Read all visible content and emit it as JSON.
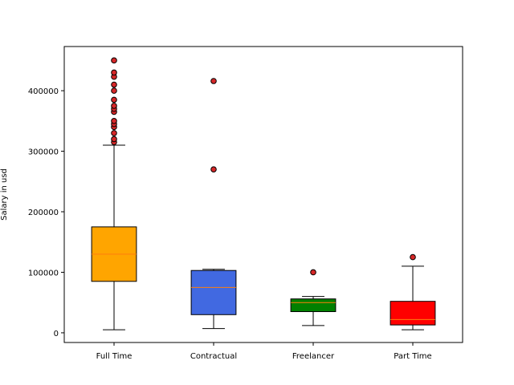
{
  "chart_data": {
    "type": "box",
    "title": "",
    "xlabel": "",
    "ylabel": "Salary in usd",
    "ylim": [
      -16000,
      473000
    ],
    "yticks": [
      0,
      100000,
      200000,
      300000,
      400000
    ],
    "ytick_labels": [
      "0",
      "100000",
      "200000",
      "300000",
      "400000"
    ],
    "grid": false,
    "categories": [
      "Full Time",
      "Contractual",
      "Freelancer",
      "Part Time"
    ],
    "colors": [
      "#ffa500",
      "#4169e1",
      "#008000",
      "#ff0000"
    ],
    "median_color": "#ff7f0e",
    "flier_color": "#d62728",
    "boxes": [
      {
        "whisker_low": 5000,
        "q1": 85000,
        "median": 130000,
        "q3": 175000,
        "whisker_high": 310000,
        "fliers": [
          315000,
          320000,
          330000,
          340000,
          345000,
          350000,
          365000,
          370000,
          375000,
          385000,
          400000,
          410000,
          423000,
          430000,
          450000
        ]
      },
      {
        "whisker_low": 7000,
        "q1": 30000,
        "median": 75000,
        "q3": 103000,
        "whisker_high": 105000,
        "fliers": [
          270000,
          416000
        ]
      },
      {
        "whisker_low": 12000,
        "q1": 35000,
        "median": 50000,
        "q3": 56000,
        "whisker_high": 60000,
        "fliers": [
          100000
        ]
      },
      {
        "whisker_low": 5000,
        "q1": 13000,
        "median": 22000,
        "q3": 52000,
        "whisker_high": 110000,
        "fliers": [
          125000
        ]
      }
    ]
  }
}
